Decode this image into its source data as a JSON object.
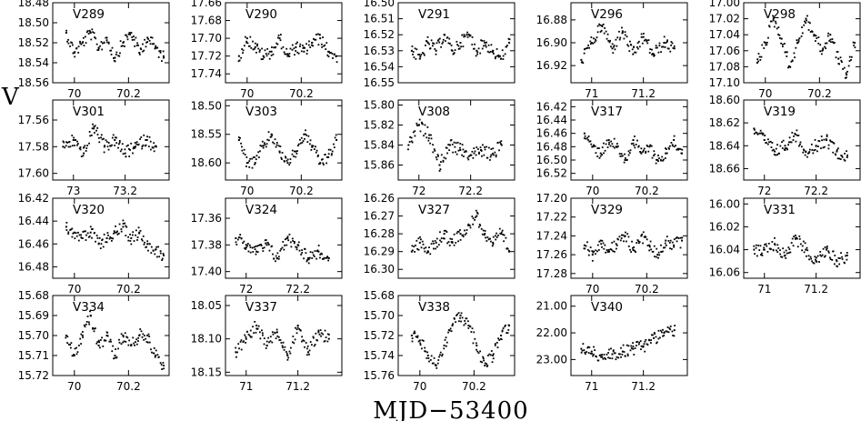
{
  "figure": {
    "ylabel": "V",
    "xlabel": "MJD−53400"
  },
  "chart_data": [
    {
      "type": "scatter",
      "title": "V289",
      "x_ticks": [
        "70",
        "70.2"
      ],
      "y_ticks": [
        "18.48",
        "18.50",
        "18.52",
        "18.54",
        "18.56"
      ],
      "xlim": [
        69.92,
        70.35
      ],
      "ylim": [
        18.56,
        18.48
      ],
      "series": [
        {
          "x": [
            69.97,
            70.0,
            70.03,
            70.06,
            70.09,
            70.12,
            70.15,
            70.18,
            70.21,
            70.24,
            70.27,
            70.3,
            70.33
          ],
          "y": [
            18.51,
            18.53,
            18.52,
            18.51,
            18.525,
            18.515,
            18.535,
            18.52,
            18.51,
            18.53,
            18.515,
            18.525,
            18.535
          ]
        }
      ]
    },
    {
      "type": "scatter",
      "title": "V290",
      "x_ticks": [
        "70",
        "70.2"
      ],
      "y_ticks": [
        "17.66",
        "17.68",
        "17.70",
        "17.72",
        "17.74"
      ],
      "xlim": [
        69.92,
        70.35
      ],
      "ylim": [
        17.75,
        17.66
      ],
      "series": [
        {
          "x": [
            69.97,
            70.0,
            70.03,
            70.06,
            70.09,
            70.12,
            70.15,
            70.18,
            70.21,
            70.24,
            70.27,
            70.3,
            70.33
          ],
          "y": [
            17.72,
            17.7,
            17.71,
            17.72,
            17.715,
            17.7,
            17.72,
            17.71,
            17.715,
            17.705,
            17.7,
            17.715,
            17.72
          ]
        }
      ]
    },
    {
      "type": "scatter",
      "title": "V291",
      "x_ticks": [],
      "y_ticks": [
        "16.50",
        "16.51",
        "16.52",
        "16.53",
        "16.54",
        "16.55"
      ],
      "xlim": [
        69.92,
        70.35
      ],
      "ylim": [
        16.55,
        16.5
      ],
      "series": [
        {
          "x": [
            69.97,
            70.0,
            70.03,
            70.06,
            70.09,
            70.12,
            70.15,
            70.18,
            70.21,
            70.24,
            70.27,
            70.3,
            70.33
          ],
          "y": [
            16.53,
            16.535,
            16.525,
            16.53,
            16.52,
            16.53,
            16.525,
            16.52,
            16.53,
            16.525,
            16.53,
            16.535,
            16.525
          ]
        }
      ]
    },
    {
      "type": "scatter",
      "title": "V296",
      "x_ticks": [
        "71",
        "71.2"
      ],
      "y_ticks": [
        "16.88",
        "16.90",
        "16.92"
      ],
      "xlim": [
        70.92,
        71.37
      ],
      "ylim": [
        16.935,
        16.865
      ],
      "series": [
        {
          "x": [
            70.96,
            71.0,
            71.04,
            71.08,
            71.12,
            71.16,
            71.2,
            71.24,
            71.28,
            71.32
          ],
          "y": [
            16.915,
            16.9,
            16.885,
            16.905,
            16.89,
            16.91,
            16.895,
            16.91,
            16.9,
            16.905
          ]
        }
      ]
    },
    {
      "type": "scatter",
      "title": "V298",
      "x_ticks": [
        "70",
        "70.2"
      ],
      "y_ticks": [
        "17.00",
        "17.02",
        "17.04",
        "17.06",
        "17.08",
        "17.10"
      ],
      "xlim": [
        69.92,
        70.35
      ],
      "ylim": [
        17.1,
        17.0
      ],
      "series": [
        {
          "x": [
            69.97,
            70.0,
            70.03,
            70.06,
            70.09,
            70.12,
            70.15,
            70.18,
            70.21,
            70.24,
            70.27,
            70.3,
            70.33
          ],
          "y": [
            17.075,
            17.05,
            17.02,
            17.045,
            17.08,
            17.05,
            17.02,
            17.04,
            17.06,
            17.04,
            17.07,
            17.09,
            17.05
          ]
        }
      ]
    },
    {
      "type": "scatter",
      "title": "V301",
      "x_ticks": [
        "73",
        "73.2"
      ],
      "y_ticks": [
        "17.56",
        "17.58",
        "17.60"
      ],
      "xlim": [
        72.92,
        73.37
      ],
      "ylim": [
        17.605,
        17.545
      ],
      "series": [
        {
          "x": [
            72.96,
            73.0,
            73.04,
            73.08,
            73.12,
            73.16,
            73.2,
            73.24,
            73.28,
            73.32
          ],
          "y": [
            17.58,
            17.575,
            17.585,
            17.565,
            17.58,
            17.575,
            17.585,
            17.58,
            17.575,
            17.58
          ]
        }
      ]
    },
    {
      "type": "scatter",
      "title": "V303",
      "x_ticks": [
        "70",
        "70.2"
      ],
      "y_ticks": [
        "18.50",
        "18.55",
        "18.60"
      ],
      "xlim": [
        69.92,
        70.35
      ],
      "ylim": [
        18.63,
        18.49
      ],
      "series": [
        {
          "x": [
            69.97,
            70.0,
            70.03,
            70.06,
            70.09,
            70.12,
            70.15,
            70.18,
            70.21,
            70.24,
            70.27,
            70.3,
            70.33
          ],
          "y": [
            18.56,
            18.6,
            18.6,
            18.57,
            18.55,
            18.58,
            18.6,
            18.58,
            18.55,
            18.57,
            18.6,
            18.59,
            18.56
          ]
        }
      ]
    },
    {
      "type": "scatter",
      "title": "V308",
      "x_ticks": [
        "72",
        "72.2"
      ],
      "y_ticks": [
        "15.80",
        "15.82",
        "15.84",
        "15.86"
      ],
      "xlim": [
        71.92,
        72.37
      ],
      "ylim": [
        15.875,
        15.795
      ],
      "series": [
        {
          "x": [
            71.96,
            72.0,
            72.04,
            72.08,
            72.12,
            72.16,
            72.2,
            72.24,
            72.28,
            72.32
          ],
          "y": [
            15.84,
            15.82,
            15.83,
            15.86,
            15.84,
            15.845,
            15.85,
            15.845,
            15.85,
            15.84
          ]
        }
      ]
    },
    {
      "type": "scatter",
      "title": "V317",
      "x_ticks": [
        "70",
        "70.2"
      ],
      "y_ticks": [
        "16.42",
        "16.44",
        "16.46",
        "16.48",
        "16.50",
        "16.52"
      ],
      "xlim": [
        69.92,
        70.35
      ],
      "ylim": [
        16.53,
        16.41
      ],
      "series": [
        {
          "x": [
            69.97,
            70.0,
            70.03,
            70.06,
            70.09,
            70.12,
            70.15,
            70.18,
            70.21,
            70.24,
            70.27,
            70.3,
            70.33
          ],
          "y": [
            16.46,
            16.48,
            16.49,
            16.47,
            16.48,
            16.5,
            16.47,
            16.49,
            16.48,
            16.5,
            16.49,
            16.47,
            16.49
          ]
        }
      ]
    },
    {
      "type": "scatter",
      "title": "V319",
      "x_ticks": [
        "72",
        "72.2"
      ],
      "y_ticks": [
        "18.60",
        "18.62",
        "18.64",
        "18.66"
      ],
      "xlim": [
        71.92,
        72.37
      ],
      "ylim": [
        18.67,
        18.6
      ],
      "series": [
        {
          "x": [
            71.96,
            72.0,
            72.04,
            72.08,
            72.12,
            72.16,
            72.2,
            72.24,
            72.28,
            72.32
          ],
          "y": [
            18.625,
            18.635,
            18.645,
            18.64,
            18.63,
            18.645,
            18.64,
            18.635,
            18.645,
            18.65
          ]
        }
      ]
    },
    {
      "type": "scatter",
      "title": "V320",
      "x_ticks": [
        "70",
        "70.2"
      ],
      "y_ticks": [
        "16.42",
        "16.44",
        "16.46",
        "16.48"
      ],
      "xlim": [
        69.92,
        70.35
      ],
      "ylim": [
        16.49,
        16.42
      ],
      "series": [
        {
          "x": [
            69.97,
            70.0,
            70.03,
            70.06,
            70.09,
            70.12,
            70.15,
            70.18,
            70.21,
            70.24,
            70.27,
            70.3,
            70.33
          ],
          "y": [
            16.445,
            16.45,
            16.455,
            16.45,
            16.46,
            16.455,
            16.45,
            16.445,
            16.455,
            16.45,
            16.46,
            16.465,
            16.47
          ]
        }
      ]
    },
    {
      "type": "scatter",
      "title": "V324",
      "x_ticks": [
        "72",
        "72.2"
      ],
      "y_ticks": [
        "17.36",
        "17.38",
        "17.40"
      ],
      "xlim": [
        71.92,
        72.37
      ],
      "ylim": [
        17.405,
        17.345
      ],
      "series": [
        {
          "x": [
            71.96,
            72.0,
            72.04,
            72.08,
            72.12,
            72.16,
            72.2,
            72.24,
            72.28,
            72.32
          ],
          "y": [
            17.375,
            17.38,
            17.385,
            17.38,
            17.39,
            17.375,
            17.38,
            17.39,
            17.385,
            17.39
          ]
        }
      ]
    },
    {
      "type": "scatter",
      "title": "V327",
      "x_ticks": [],
      "y_ticks": [
        "16.26",
        "16.27",
        "16.28",
        "16.29",
        "16.30"
      ],
      "xlim": [
        69.92,
        70.35
      ],
      "ylim": [
        16.305,
        16.26
      ],
      "series": [
        {
          "x": [
            69.97,
            70.0,
            70.03,
            70.06,
            70.09,
            70.12,
            70.15,
            70.18,
            70.21,
            70.24,
            70.27,
            70.3,
            70.33
          ],
          "y": [
            16.29,
            16.285,
            16.29,
            16.285,
            16.28,
            16.285,
            16.28,
            16.275,
            16.27,
            16.28,
            16.285,
            16.28,
            16.29
          ]
        }
      ]
    },
    {
      "type": "scatter",
      "title": "V329",
      "x_ticks": [
        "70",
        "70.2"
      ],
      "y_ticks": [
        "17.20",
        "17.22",
        "17.24",
        "17.26",
        "17.28"
      ],
      "xlim": [
        69.92,
        70.35
      ],
      "ylim": [
        17.285,
        17.2
      ],
      "series": [
        {
          "x": [
            69.97,
            70.0,
            70.03,
            70.06,
            70.09,
            70.12,
            70.15,
            70.18,
            70.21,
            70.24,
            70.27,
            70.3,
            70.33
          ],
          "y": [
            17.25,
            17.26,
            17.245,
            17.255,
            17.25,
            17.24,
            17.255,
            17.24,
            17.25,
            17.26,
            17.245,
            17.25,
            17.245
          ]
        }
      ]
    },
    {
      "type": "scatter",
      "title": "V331",
      "x_ticks": [
        "71",
        "71.2"
      ],
      "y_ticks": [
        "16.00",
        "16.02",
        "16.04",
        "16.06"
      ],
      "xlim": [
        70.92,
        71.37
      ],
      "ylim": [
        16.065,
        15.995
      ],
      "series": [
        {
          "x": [
            70.96,
            71.0,
            71.04,
            71.08,
            71.12,
            71.16,
            71.2,
            71.24,
            71.28,
            71.32
          ],
          "y": [
            16.04,
            16.04,
            16.035,
            16.045,
            16.03,
            16.04,
            16.05,
            16.04,
            16.05,
            16.045
          ]
        }
      ]
    },
    {
      "type": "scatter",
      "title": "V334",
      "x_ticks": [
        "70",
        "70.2"
      ],
      "y_ticks": [
        "15.68",
        "15.69",
        "15.70",
        "15.71",
        "15.72"
      ],
      "xlim": [
        69.92,
        70.35
      ],
      "ylim": [
        15.72,
        15.68
      ],
      "series": [
        {
          "x": [
            69.97,
            70.0,
            70.03,
            70.06,
            70.09,
            70.12,
            70.15,
            70.18,
            70.21,
            70.24,
            70.27,
            70.3,
            70.33
          ],
          "y": [
            15.7,
            15.71,
            15.7,
            15.69,
            15.705,
            15.7,
            15.71,
            15.7,
            15.705,
            15.7,
            15.7,
            15.71,
            15.715
          ]
        }
      ]
    },
    {
      "type": "scatter",
      "title": "V337",
      "x_ticks": [
        "71",
        "71.2"
      ],
      "y_ticks": [
        "18.05",
        "18.10",
        "18.15"
      ],
      "xlim": [
        70.92,
        71.37
      ],
      "ylim": [
        18.155,
        18.035
      ],
      "series": [
        {
          "x": [
            70.96,
            71.0,
            71.04,
            71.08,
            71.12,
            71.16,
            71.2,
            71.24,
            71.28,
            71.32
          ],
          "y": [
            18.12,
            18.1,
            18.08,
            18.11,
            18.09,
            18.125,
            18.08,
            18.12,
            18.09,
            18.1
          ]
        }
      ]
    },
    {
      "type": "scatter",
      "title": "V338",
      "x_ticks": [
        "70",
        "70.2"
      ],
      "y_ticks": [
        "15.68",
        "15.70",
        "15.72",
        "15.74",
        "15.76"
      ],
      "xlim": [
        69.92,
        70.35
      ],
      "ylim": [
        15.76,
        15.68
      ],
      "series": [
        {
          "x": [
            69.97,
            70.0,
            70.03,
            70.06,
            70.09,
            70.12,
            70.15,
            70.18,
            70.21,
            70.24,
            70.27,
            70.3,
            70.33
          ],
          "y": [
            15.72,
            15.725,
            15.74,
            15.75,
            15.73,
            15.71,
            15.7,
            15.71,
            15.73,
            15.75,
            15.74,
            15.72,
            15.71
          ]
        }
      ]
    },
    {
      "type": "scatter",
      "title": "V340",
      "x_ticks": [
        "71",
        "71.2"
      ],
      "y_ticks": [
        "21.00",
        "22.00",
        "23.00"
      ],
      "xlim": [
        70.92,
        71.37
      ],
      "ylim": [
        23.6,
        20.6
      ],
      "series": [
        {
          "x": [
            70.96,
            71.0,
            71.04,
            71.08,
            71.12,
            71.16,
            71.2,
            71.24,
            71.28,
            71.32
          ],
          "y": [
            22.6,
            22.7,
            22.9,
            22.8,
            22.7,
            22.6,
            22.5,
            22.2,
            22.0,
            21.9
          ]
        }
      ]
    }
  ]
}
